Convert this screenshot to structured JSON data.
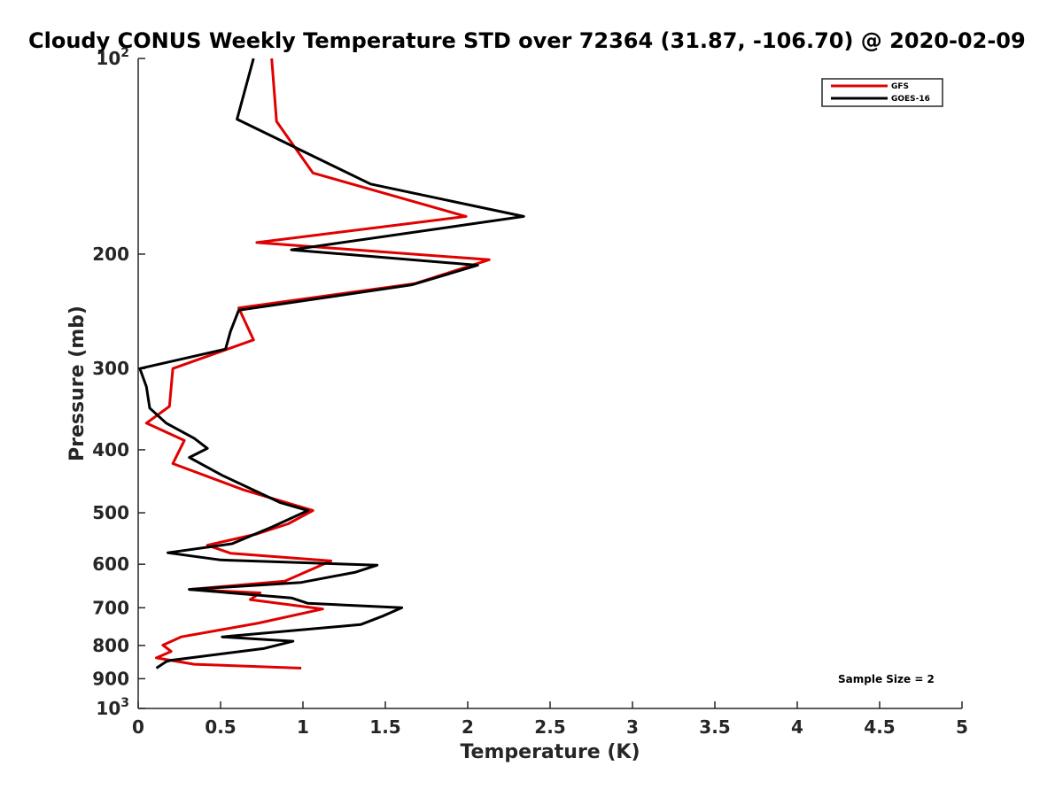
{
  "chart_data": {
    "type": "line",
    "title": "Cloudy CONUS Weekly Temperature STD over 72364 (31.87, -106.70) @ 2020-02-09",
    "xlabel": "Temperature (K)",
    "ylabel": "Pressure (mb)",
    "xlim": [
      0,
      5
    ],
    "ylim": [
      100,
      1000
    ],
    "y_scale": "log",
    "y_reversed": true,
    "x_ticks": [
      {
        "value": 0,
        "label": "0"
      },
      {
        "value": 0.5,
        "label": "0.5"
      },
      {
        "value": 1,
        "label": "1"
      },
      {
        "value": 1.5,
        "label": "1.5"
      },
      {
        "value": 2,
        "label": "2"
      },
      {
        "value": 2.5,
        "label": "2.5"
      },
      {
        "value": 3,
        "label": "3"
      },
      {
        "value": 3.5,
        "label": "3.5"
      },
      {
        "value": 4,
        "label": "4"
      },
      {
        "value": 4.5,
        "label": "4.5"
      },
      {
        "value": 5,
        "label": "5"
      }
    ],
    "y_ticks": [
      {
        "value": 100,
        "base": "10",
        "exp": "2"
      },
      {
        "value": 200,
        "base": "200",
        "exp": ""
      },
      {
        "value": 300,
        "base": "300",
        "exp": ""
      },
      {
        "value": 400,
        "base": "400",
        "exp": ""
      },
      {
        "value": 500,
        "base": "500",
        "exp": ""
      },
      {
        "value": 600,
        "base": "600",
        "exp": ""
      },
      {
        "value": 700,
        "base": "700",
        "exp": ""
      },
      {
        "value": 800,
        "base": "800",
        "exp": ""
      },
      {
        "value": 900,
        "base": "900",
        "exp": ""
      },
      {
        "value": 1000,
        "base": "10",
        "exp": "3"
      }
    ],
    "grid": false,
    "legend_position": "top-right",
    "annotation": "Sample Size = 2",
    "series": [
      {
        "name": "GFS",
        "color": "#e00000",
        "points": [
          [
            0.81,
            100
          ],
          [
            0.84,
            125
          ],
          [
            1.06,
            150
          ],
          [
            1.99,
            175
          ],
          [
            0.72,
            192
          ],
          [
            2.13,
            204
          ],
          [
            1.68,
            222
          ],
          [
            0.61,
            242
          ],
          [
            0.7,
            271
          ],
          [
            0.21,
            300
          ],
          [
            0.19,
            343
          ],
          [
            0.05,
            364
          ],
          [
            0.28,
            387
          ],
          [
            0.21,
            420
          ],
          [
            0.64,
            461
          ],
          [
            1.06,
            496
          ],
          [
            0.91,
            520
          ],
          [
            0.72,
            539
          ],
          [
            0.42,
            561
          ],
          [
            0.56,
            577
          ],
          [
            1.17,
            593
          ],
          [
            0.89,
            637
          ],
          [
            0.31,
            656
          ],
          [
            0.74,
            664
          ],
          [
            0.68,
            680
          ],
          [
            1.12,
            703
          ],
          [
            0.73,
            739
          ],
          [
            0.26,
            776
          ],
          [
            0.15,
            799
          ],
          [
            0.2,
            817
          ],
          [
            0.11,
            836
          ],
          [
            0.34,
            855
          ],
          [
            0.99,
            867
          ]
        ]
      },
      {
        "name": "GOES-16",
        "color": "#000000",
        "points": [
          [
            0.7,
            100
          ],
          [
            0.6,
            124
          ],
          [
            1.41,
            156
          ],
          [
            2.34,
            175
          ],
          [
            0.93,
            197
          ],
          [
            2.06,
            208
          ],
          [
            1.66,
            223
          ],
          [
            0.61,
            244
          ],
          [
            0.56,
            263
          ],
          [
            0.53,
            280
          ],
          [
            0.01,
            300
          ],
          [
            0.05,
            320
          ],
          [
            0.07,
            345
          ],
          [
            0.17,
            364
          ],
          [
            0.34,
            384
          ],
          [
            0.42,
            398
          ],
          [
            0.31,
            411
          ],
          [
            0.51,
            438
          ],
          [
            0.86,
            482
          ],
          [
            1.03,
            496
          ],
          [
            0.81,
            526
          ],
          [
            0.57,
            558
          ],
          [
            0.18,
            576
          ],
          [
            0.5,
            591
          ],
          [
            1.45,
            602
          ],
          [
            1.32,
            617
          ],
          [
            0.99,
            640
          ],
          [
            0.31,
            656
          ],
          [
            0.93,
            676
          ],
          [
            1.03,
            689
          ],
          [
            1.6,
            700
          ],
          [
            1.49,
            720
          ],
          [
            1.35,
            743
          ],
          [
            0.51,
            776
          ],
          [
            0.94,
            788
          ],
          [
            0.76,
            809
          ],
          [
            0.2,
            843
          ],
          [
            0.17,
            847
          ],
          [
            0.11,
            867
          ]
        ]
      }
    ]
  }
}
